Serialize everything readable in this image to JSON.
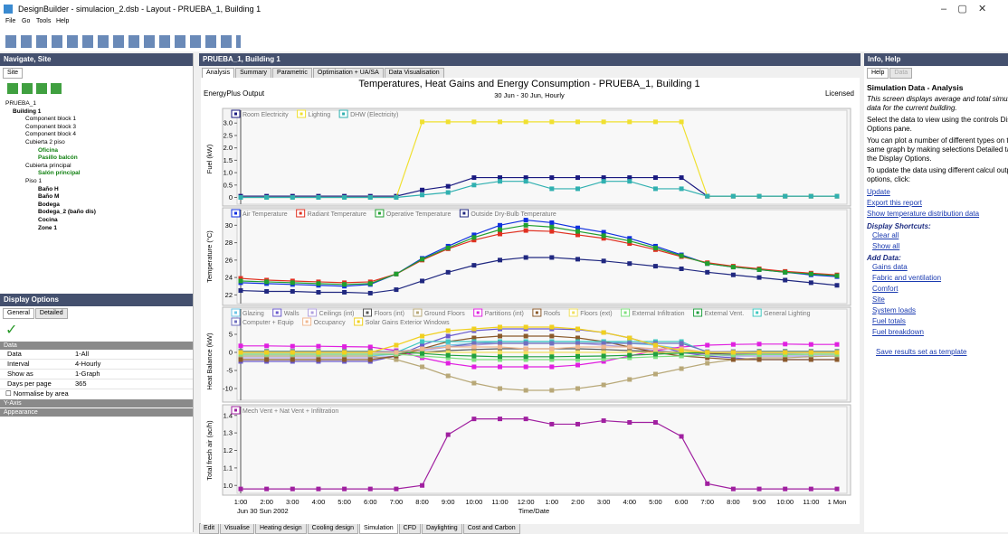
{
  "window": {
    "title": "DesignBuilder - simulacion_2.dsb - Layout - PRUEBA_1, Building 1",
    "menu": [
      "File",
      "Go",
      "Tools",
      "Help"
    ]
  },
  "navigate": {
    "header": "Navigate, Site",
    "tab": "Site",
    "tree": [
      "PRUEBA_1",
      "Building 1",
      "Component block 1",
      "Component block 3",
      "Component block 4",
      "Cubierta 2 piso",
      "Oficina",
      "Pasillo balcón",
      "Cubierta principal",
      "Salón principal",
      "Piso 1",
      "Baño H",
      "Baño M",
      "Bodega",
      "Bodega_2 (baño dis)",
      "Cocina",
      "Zone 1"
    ]
  },
  "display_options": {
    "header": "Display Options",
    "tabs": [
      "General",
      "Detailed"
    ],
    "section": "Data",
    "rows": [
      [
        "Data",
        "1-All"
      ],
      [
        "Interval",
        "4-Hourly"
      ],
      [
        "Show as",
        "1-Graph"
      ],
      [
        "Days per page",
        365
      ]
    ],
    "checkbox": "Normalise by area",
    "sections": [
      "Y-Axis",
      "Appearance"
    ]
  },
  "center": {
    "header": "PRUEBA_1, Building 1",
    "tabs": [
      "Analysis",
      "Summary",
      "Parametric",
      "Optimisation + UA/SA",
      "Data Visualisation"
    ],
    "bottom_tabs": [
      "Edit",
      "Visualise",
      "Heating design",
      "Cooling design",
      "Simulation",
      "CFD",
      "Daylighting",
      "Cost and Carbon"
    ]
  },
  "report": {
    "source": "EnergyPlus Output",
    "title": "Temperatures, Heat Gains and Energy Consumption - PRUEBA_1, Building 1",
    "subtitle": "30 Jun - 30 Jun, Hourly",
    "license": "Licensed",
    "date_label": "Jun  30 Sun 2002"
  },
  "chart_data": [
    {
      "type": "line",
      "ylabel": "Fuel (kW)",
      "ylim": [
        -0.2,
        3.3
      ],
      "yticks": [
        0,
        0.5,
        {
          "value": 1,
          "label": "1.0"
        },
        1.5,
        {
          "value": 2,
          "label": "2.0"
        },
        2.5,
        {
          "value": 3,
          "label": "3.0"
        }
      ],
      "series": [
        {
          "name": "Room Electricity",
          "color": "#1a1a80",
          "values": [
            0.05,
            0.05,
            0.05,
            0.05,
            0.05,
            0.05,
            0.05,
            0.3,
            0.45,
            0.8,
            0.8,
            0.8,
            0.8,
            0.8,
            0.8,
            0.8,
            0.8,
            0.8,
            0.05,
            0.05,
            0.05,
            0.05,
            0.05,
            0.05
          ]
        },
        {
          "name": "Lighting",
          "color": "#f0e030",
          "values": [
            0,
            0,
            0,
            0,
            0,
            0,
            0,
            3.05,
            3.05,
            3.05,
            3.05,
            3.05,
            3.05,
            3.05,
            3.05,
            3.05,
            3.05,
            3.05,
            0.05,
            0.05,
            0.05,
            0.05,
            0.05,
            0.05
          ]
        },
        {
          "name": "DHW (Electricity)",
          "color": "#30b0b0",
          "values": [
            0,
            0,
            0,
            0,
            0,
            0,
            0,
            0.1,
            0.2,
            0.5,
            0.65,
            0.65,
            0.35,
            0.35,
            0.65,
            0.65,
            0.35,
            0.35,
            0.05,
            0.05,
            0.05,
            0.05,
            0.05,
            0.05
          ]
        }
      ]
    },
    {
      "type": "line",
      "ylabel": "Temperature (°C)",
      "ylim": [
        21,
        31.8
      ],
      "yticks": [
        22,
        24,
        26,
        28,
        30
      ],
      "series": [
        {
          "name": "Air Temperature",
          "color": "#1030e0",
          "values": [
            23.4,
            23.3,
            23.2,
            23.1,
            23.0,
            23.2,
            24.4,
            26.2,
            27.6,
            28.9,
            30.0,
            30.6,
            30.3,
            29.7,
            29.2,
            28.5,
            27.6,
            26.6,
            25.6,
            25.2,
            24.9,
            24.6,
            24.3,
            24.1
          ]
        },
        {
          "name": "Radiant Temperature",
          "color": "#e03020",
          "values": [
            23.9,
            23.7,
            23.6,
            23.5,
            23.4,
            23.5,
            24.4,
            26.0,
            27.3,
            28.3,
            29.0,
            29.4,
            29.3,
            28.9,
            28.5,
            27.9,
            27.2,
            26.4,
            25.7,
            25.3,
            25.0,
            24.7,
            24.5,
            24.3
          ]
        },
        {
          "name": "Operative Temperature",
          "color": "#20a030",
          "values": [
            23.6,
            23.5,
            23.4,
            23.3,
            23.2,
            23.3,
            24.4,
            26.1,
            27.4,
            28.6,
            29.5,
            30.0,
            29.8,
            29.3,
            28.8,
            28.2,
            27.4,
            26.5,
            25.6,
            25.2,
            24.9,
            24.6,
            24.4,
            24.2
          ]
        },
        {
          "name": "Outside Dry-Bulb Temperature",
          "color": "#202880",
          "values": [
            22.5,
            22.4,
            22.4,
            22.3,
            22.3,
            22.2,
            22.6,
            23.6,
            24.6,
            25.4,
            26.0,
            26.3,
            26.3,
            26.1,
            25.9,
            25.6,
            25.3,
            25.0,
            24.6,
            24.3,
            24.0,
            23.7,
            23.4,
            23.1
          ]
        }
      ]
    },
    {
      "type": "line",
      "ylabel": "Heat Balance (kW)",
      "ylim": [
        -12.5,
        7.5
      ],
      "yticks": [
        -10,
        -5,
        0,
        5
      ],
      "series": [
        {
          "name": "Glazing",
          "color": "#6ec6e6",
          "values": [
            -1,
            -1,
            -1,
            -1,
            -1,
            -1,
            -0.5,
            1,
            2,
            2.5,
            3,
            3,
            3,
            3,
            3,
            2.5,
            2,
            1,
            -0.5,
            -1,
            -1,
            -1,
            -1,
            -1
          ]
        },
        {
          "name": "Walls",
          "color": "#6a5acd",
          "values": [
            -2.5,
            -2.5,
            -2.5,
            -2.5,
            -2.5,
            -2.5,
            -1,
            2,
            4.5,
            6,
            6.5,
            6.5,
            6.5,
            6.3,
            5.5,
            4,
            2,
            0,
            -1,
            -1.5,
            -2,
            -2,
            -2,
            -2
          ]
        },
        {
          "name": "Ceilings (int)",
          "color": "#b0a0e0",
          "values": [
            -1.5,
            -1.5,
            -1.5,
            -1.5,
            -1.5,
            -1.5,
            -1,
            0.5,
            1.5,
            2,
            2.5,
            2.5,
            2.5,
            2.5,
            2,
            1.5,
            0.5,
            0,
            -0.5,
            -1,
            -1,
            -1,
            -1,
            -1
          ]
        },
        {
          "name": "Floors (int)",
          "color": "#555555",
          "values": [
            -0.5,
            -0.5,
            -0.5,
            -0.5,
            -0.5,
            -0.5,
            -0.5,
            0,
            0.5,
            0.8,
            1,
            1,
            1,
            1,
            0.8,
            0.5,
            0.2,
            0,
            -0.3,
            -0.5,
            -0.5,
            -0.5,
            -0.5,
            -0.5
          ]
        },
        {
          "name": "Ground Floors",
          "color": "#b8a878",
          "values": [
            -1,
            -1,
            -1,
            -1,
            -1,
            -1,
            -2,
            -4,
            -6.5,
            -8.5,
            -10,
            -10.5,
            -10.5,
            -10,
            -9,
            -7.5,
            -6,
            -4.5,
            -3,
            -2,
            -1.5,
            -1.5,
            -1.2,
            -1
          ]
        },
        {
          "name": "Partitions (int)",
          "color": "#e020e0",
          "values": [
            1.8,
            1.8,
            1.7,
            1.7,
            1.6,
            1.5,
            0.5,
            -1.5,
            -3,
            -4,
            -4,
            -4,
            -4,
            -3.5,
            -2.5,
            -1,
            0.5,
            1.5,
            2,
            2.2,
            2.3,
            2.3,
            2.2,
            2.2
          ]
        },
        {
          "name": "Roofs",
          "color": "#8b5a2b",
          "values": [
            -2,
            -2,
            -2,
            -2,
            -2,
            -2,
            -1,
            1,
            3,
            4,
            4.5,
            4.5,
            4.5,
            4,
            3,
            1.5,
            0,
            -1,
            -1.5,
            -2,
            -2,
            -2,
            -2,
            -2
          ]
        },
        {
          "name": "Floors (ext)",
          "color": "#f0e060",
          "values": [
            0,
            0,
            0,
            0,
            0,
            0,
            0,
            0,
            0,
            0,
            0,
            0,
            0,
            0,
            0,
            0,
            0,
            0,
            0,
            0,
            0,
            0,
            0,
            0
          ]
        },
        {
          "name": "External Infiltration",
          "color": "#80e080",
          "values": [
            -0.5,
            -0.5,
            -0.5,
            -0.5,
            -0.5,
            -0.5,
            -0.5,
            -1,
            -1.5,
            -2,
            -2,
            -2,
            -2,
            -2,
            -1.8,
            -1.5,
            -1.2,
            -1,
            -0.8,
            -0.7,
            -0.6,
            -0.6,
            -0.5,
            -0.5
          ]
        },
        {
          "name": "External Vent.",
          "color": "#20a040",
          "values": [
            0.3,
            0.3,
            0.3,
            0.3,
            0.3,
            0.3,
            0.2,
            -0.3,
            -0.8,
            -1,
            -1.2,
            -1.2,
            -1.2,
            -1.1,
            -1,
            -0.8,
            -0.5,
            -0.2,
            0,
            0.2,
            0.3,
            0.3,
            0.3,
            0.3
          ]
        },
        {
          "name": "General Lighting",
          "color": "#40c8c0",
          "values": [
            0,
            0,
            0,
            0,
            0,
            0,
            0,
            3,
            3,
            3,
            3,
            3,
            3,
            3,
            3,
            3,
            3,
            3,
            0,
            0,
            0,
            0,
            0,
            0
          ]
        },
        {
          "name": "Computer + Equip",
          "color": "#7070c0",
          "values": [
            0.2,
            0.2,
            0.2,
            0.2,
            0.2,
            0.2,
            0.2,
            1,
            1.5,
            2.5,
            2.5,
            2.5,
            2.5,
            2.5,
            2.5,
            2.5,
            2.5,
            2.5,
            0.2,
            0.2,
            0.2,
            0.2,
            0.2,
            0.2
          ]
        },
        {
          "name": "Occupancy",
          "color": "#f0b890",
          "values": [
            0,
            0,
            0,
            0,
            0,
            0,
            0,
            1,
            1.5,
            1.5,
            1.5,
            1,
            1,
            1.5,
            1.5,
            1.5,
            1,
            1,
            0,
            0,
            0,
            0,
            0,
            0
          ]
        },
        {
          "name": "Solar Gains Exterior Windows",
          "color": "#f0d020",
          "values": [
            0,
            0,
            0,
            0,
            0,
            0,
            2,
            4.5,
            6,
            6.5,
            7,
            7,
            7,
            6.5,
            5.5,
            4,
            2,
            0.5,
            0,
            0,
            0,
            0,
            0,
            0
          ]
        }
      ]
    },
    {
      "type": "line",
      "ylabel": "Total fresh air (ac/h)",
      "xlabel": "Time/Date",
      "ylim": [
        0.96,
        1.44
      ],
      "yticks": [
        {
          "value": 1,
          "label": "1.0"
        },
        1.1,
        1.2,
        1.3,
        1.4
      ],
      "categories": [
        "1:00",
        "2:00",
        "3:00",
        "4:00",
        "5:00",
        "6:00",
        "7:00",
        "8:00",
        "9:00",
        "10:00",
        "11:00",
        "12:00",
        "1:00",
        "2:00",
        "3:00",
        "4:00",
        "5:00",
        "6:00",
        "7:00",
        "8:00",
        "9:00",
        "10:00",
        "11:00",
        "1 Mon"
      ],
      "series": [
        {
          "name": "Mech Vent + Nat Vent + Infiltration",
          "color": "#a020a0",
          "values": [
            0.98,
            0.98,
            0.98,
            0.98,
            0.98,
            0.98,
            0.98,
            1.0,
            1.29,
            1.38,
            1.38,
            1.38,
            1.35,
            1.35,
            1.37,
            1.36,
            1.36,
            1.28,
            1.01,
            0.98,
            0.98,
            0.98,
            0.98,
            0.98
          ]
        }
      ]
    }
  ],
  "help": {
    "header": "Info, Help",
    "tabs": [
      "Help",
      "Data"
    ],
    "title": "Simulation Data - Analysis",
    "intro": "This screen displays average and total simulation data for the current building.",
    "paragraphs": [
      "Select the data to view using the controls Display Options pane.",
      "You can plot a number of different types on the same graph by making selections Detailed tab of the Display Options.",
      "To update the data using different calcul outputs options, click:"
    ],
    "links": [
      "Update",
      "Export this report",
      "Show temperature distribution data"
    ],
    "shortcuts_heading": "Display Shortcuts:",
    "shortcuts": [
      "Clear all",
      "Show all"
    ],
    "add_heading": "Add Data:",
    "add": [
      "Gains data",
      "Fabric and ventilation",
      "Comfort",
      "Site",
      "System loads",
      "Fuel totals",
      "Fuel breakdown"
    ],
    "template": "Save results set as template"
  }
}
